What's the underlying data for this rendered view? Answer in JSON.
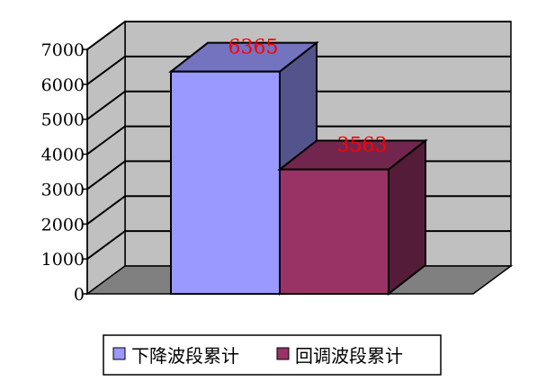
{
  "chart_data": {
    "type": "bar",
    "three_d": true,
    "series": [
      {
        "name": "下降波段累计",
        "values": [
          6365
        ],
        "color": "#9999ff"
      },
      {
        "name": "回调波段累计",
        "values": [
          3563
        ],
        "color": "#993366"
      }
    ],
    "data_labels": [
      "6365",
      "3563"
    ],
    "ylim": [
      0,
      7000
    ],
    "yticks": [
      "0",
      "1000",
      "2000",
      "3000",
      "4000",
      "5000",
      "6000",
      "7000"
    ],
    "grid": true,
    "legend_position": "bottom",
    "label_color": "#ff0000",
    "wall_color": "#c0c0c0",
    "floor_color": "#808080"
  }
}
